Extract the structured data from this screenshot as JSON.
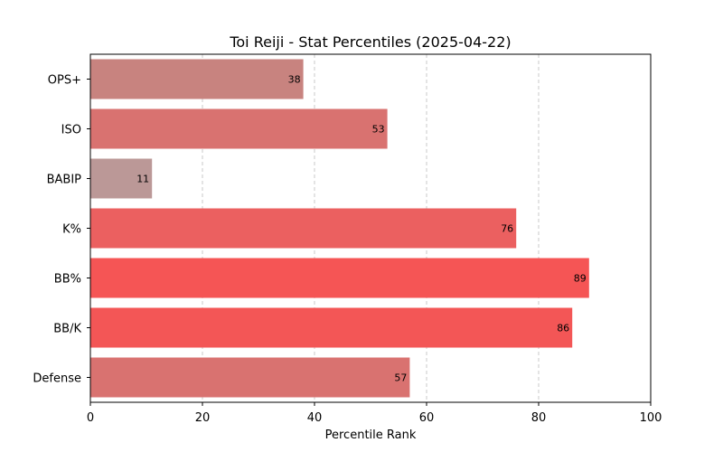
{
  "chart_data": {
    "type": "bar",
    "orientation": "horizontal",
    "title": "Toi Reiji - Stat Percentiles (2025-04-22)",
    "xlabel": "Percentile Rank",
    "ylabel": "",
    "xlim": [
      0,
      100
    ],
    "xticks": [
      0,
      20,
      40,
      60,
      80,
      100
    ],
    "grid": "x-dashed",
    "categories": [
      "OPS+",
      "ISO",
      "BABIP",
      "K%",
      "BB%",
      "BB/K",
      "Defense"
    ],
    "values": [
      38,
      53,
      11,
      76,
      89,
      86,
      57
    ],
    "colors": [
      "#c8837f",
      "#d97270",
      "#bb9897",
      "#eb6060",
      "#f55555",
      "#f35656",
      "#d97270"
    ]
  }
}
